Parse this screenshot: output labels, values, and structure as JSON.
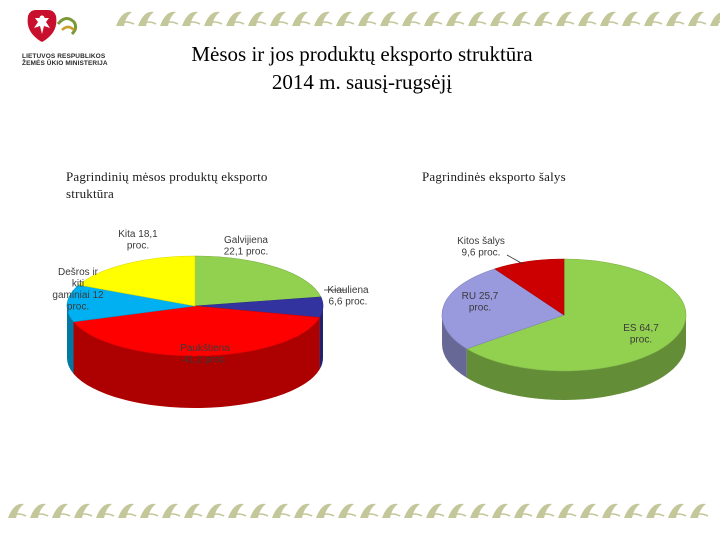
{
  "header": {
    "logo_text_lines": [
      "LIETUVOS RESPUBLIKOS",
      "ŽEMĖS ŪKIO MINISTERIJA"
    ],
    "title_line1": "Mėsos ir jos produktų eksporto struktūra",
    "title_line2": "2014 m. sausį-rugsėjį"
  },
  "colors": {
    "accent": "#c4c79a",
    "green": "#92d050",
    "navy": "#3333a0",
    "red": "#ff0000",
    "cyan": "#00b0f0",
    "yellow": "#ffff00",
    "lavender": "#9999dd",
    "darkred": "#cc0000"
  },
  "chart_data": [
    {
      "type": "pie",
      "title": "Pagrindinių mėsos produktų eksporto struktūra",
      "series": [
        {
          "name": "Galvijiena",
          "value": 22.1,
          "label_lines": [
            "Galvijiena",
            "22,1 proc."
          ],
          "color": "#92d050"
        },
        {
          "name": "Kiauliena",
          "value": 6.6,
          "label_lines": [
            "Kiauliena",
            "6,6 proc."
          ],
          "color": "#3333a0"
        },
        {
          "name": "Paukštiena",
          "value": 41.2,
          "label_lines": [
            "Paukštiena",
            "41,2 proc."
          ],
          "color": "#ff0000"
        },
        {
          "name": "Dešros ir kiti gaminiai",
          "value": 12,
          "label_lines": [
            "Dešros ir",
            "kiti",
            "gaminiai 12",
            "proc."
          ],
          "color": "#00b0f0"
        },
        {
          "name": "Kita",
          "value": 18.1,
          "label_lines": [
            "Kita 18,1",
            "proc."
          ],
          "color": "#ffff00"
        }
      ]
    },
    {
      "type": "pie",
      "title": "Pagrindinės eksporto šalys",
      "series": [
        {
          "name": "ES",
          "value": 64.7,
          "label_lines": [
            "ES 64,7",
            "proc."
          ],
          "color": "#92d050"
        },
        {
          "name": "RU",
          "value": 25.7,
          "label_lines": [
            "RU 25,7",
            "proc."
          ],
          "color": "#9999dd"
        },
        {
          "name": "Kitos šalys",
          "value": 9.6,
          "label_lines": [
            "Kitos šalys",
            "9,6 proc."
          ],
          "color": "#cc0000"
        }
      ]
    }
  ]
}
